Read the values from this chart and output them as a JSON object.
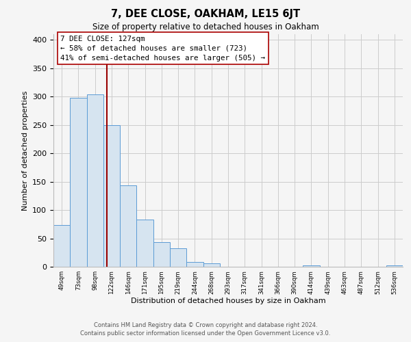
{
  "title": "7, DEE CLOSE, OAKHAM, LE15 6JT",
  "subtitle": "Size of property relative to detached houses in Oakham",
  "xlabel": "Distribution of detached houses by size in Oakham",
  "ylabel": "Number of detached properties",
  "bin_labels": [
    "49sqm",
    "73sqm",
    "98sqm",
    "122sqm",
    "146sqm",
    "171sqm",
    "195sqm",
    "219sqm",
    "244sqm",
    "268sqm",
    "293sqm",
    "317sqm",
    "341sqm",
    "366sqm",
    "390sqm",
    "414sqm",
    "439sqm",
    "463sqm",
    "487sqm",
    "512sqm",
    "536sqm"
  ],
  "bar_heights": [
    73,
    298,
    304,
    250,
    144,
    83,
    44,
    32,
    9,
    6,
    0,
    0,
    0,
    0,
    0,
    2,
    0,
    0,
    0,
    0,
    3
  ],
  "bar_color": "#d6e4f0",
  "bar_edge_color": "#5b9bd5",
  "annotation_line1": "7 DEE CLOSE: 127sqm",
  "annotation_line2": "← 58% of detached houses are smaller (723)",
  "annotation_line3": "41% of semi-detached houses are larger (505) →",
  "annotation_box_color": "#ffffff",
  "annotation_box_edge": "#aa0000",
  "ylim": [
    0,
    410
  ],
  "yticks": [
    0,
    50,
    100,
    150,
    200,
    250,
    300,
    350,
    400
  ],
  "grid_color": "#cccccc",
  "footer_line1": "Contains HM Land Registry data © Crown copyright and database right 2024.",
  "footer_line2": "Contains public sector information licensed under the Open Government Licence v3.0.",
  "bg_color": "#f5f5f5"
}
